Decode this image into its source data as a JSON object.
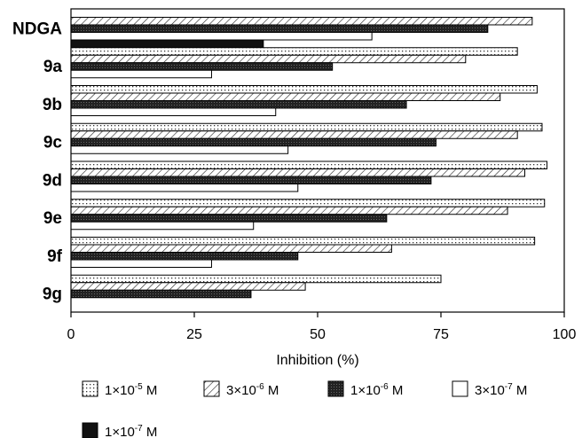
{
  "chart_data": {
    "type": "bar",
    "orientation": "horizontal",
    "categories": [
      "NDGA",
      "9a",
      "9b",
      "9c",
      "9d",
      "9e",
      "9f",
      "9g"
    ],
    "xlabel": "Inhibition (%)",
    "xlim": [
      0,
      100
    ],
    "xticks": [
      "0",
      "25",
      "50",
      "75",
      "100"
    ],
    "series": [
      {
        "name": "1×10-5 M",
        "name_base": "1×10",
        "name_exp": "-5",
        "name_unit": " M",
        "pattern": "dots",
        "values": [
          null,
          90.5,
          94.5,
          95.5,
          96.5,
          96,
          94,
          75
        ]
      },
      {
        "name": "3×10-6 M",
        "name_base": "3×10",
        "name_exp": "-6",
        "name_unit": " M",
        "pattern": "hatch",
        "values": [
          93.5,
          80,
          87,
          90.5,
          92,
          88.5,
          65,
          47.5
        ]
      },
      {
        "name": "1×10-6 M",
        "name_base": "1×10",
        "name_exp": "-6",
        "name_unit": " M",
        "pattern": "dark",
        "values": [
          84.5,
          53,
          68,
          74,
          73,
          64,
          46,
          36.5
        ]
      },
      {
        "name": "3×10-7 M",
        "name_base": "3×10",
        "name_exp": "-7",
        "name_unit": " M",
        "pattern": "open",
        "values": [
          61,
          28.5,
          41.5,
          44,
          46,
          37,
          28.5,
          null
        ]
      },
      {
        "name": "1×10-7 M",
        "name_base": "1×10",
        "name_exp": "-7",
        "name_unit": " M",
        "pattern": "solid",
        "values": [
          39,
          null,
          null,
          null,
          null,
          null,
          null,
          null
        ]
      }
    ],
    "legend_position": "bottom",
    "grid": false
  }
}
